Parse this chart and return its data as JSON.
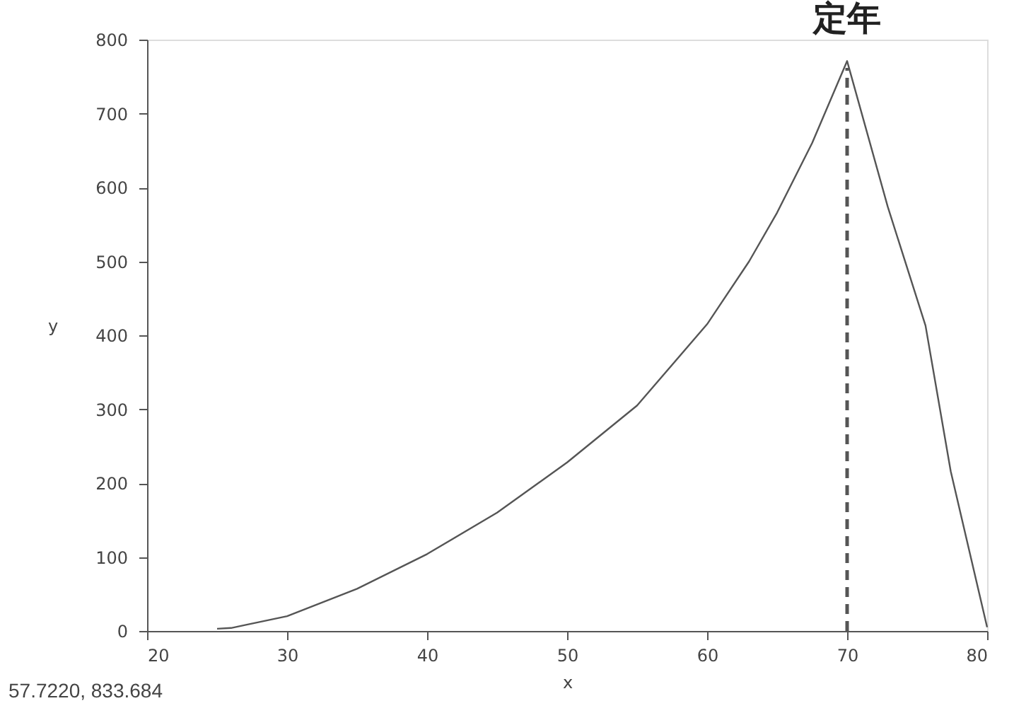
{
  "chart_data": {
    "type": "line",
    "xlabel": "x",
    "ylabel": "y",
    "xlim": [
      20,
      80
    ],
    "ylim": [
      0,
      800
    ],
    "xticks": [
      20,
      30,
      40,
      50,
      60,
      70,
      80
    ],
    "yticks": [
      0,
      100,
      200,
      300,
      400,
      500,
      600,
      700,
      800
    ],
    "series": [
      {
        "color": "#555555",
        "x": [
          25,
          26,
          27,
          30,
          35,
          40,
          45,
          50,
          55,
          60,
          63,
          65,
          67.5,
          70,
          72.9,
          75.6,
          77.4,
          80
        ],
        "values": [
          3,
          4,
          8,
          20,
          57,
          104,
          160,
          228,
          305,
          415,
          500,
          566,
          660,
          771,
          574,
          413,
          216,
          5
        ]
      }
    ],
    "ref_lines": [
      {
        "axis": "x",
        "value": 70,
        "label": "定年",
        "color": "#555555",
        "line_style": "dashed"
      }
    ],
    "annotations": [
      "57.7220, 833.684"
    ],
    "grid": false,
    "line_style": "solid",
    "marker": "none"
  }
}
